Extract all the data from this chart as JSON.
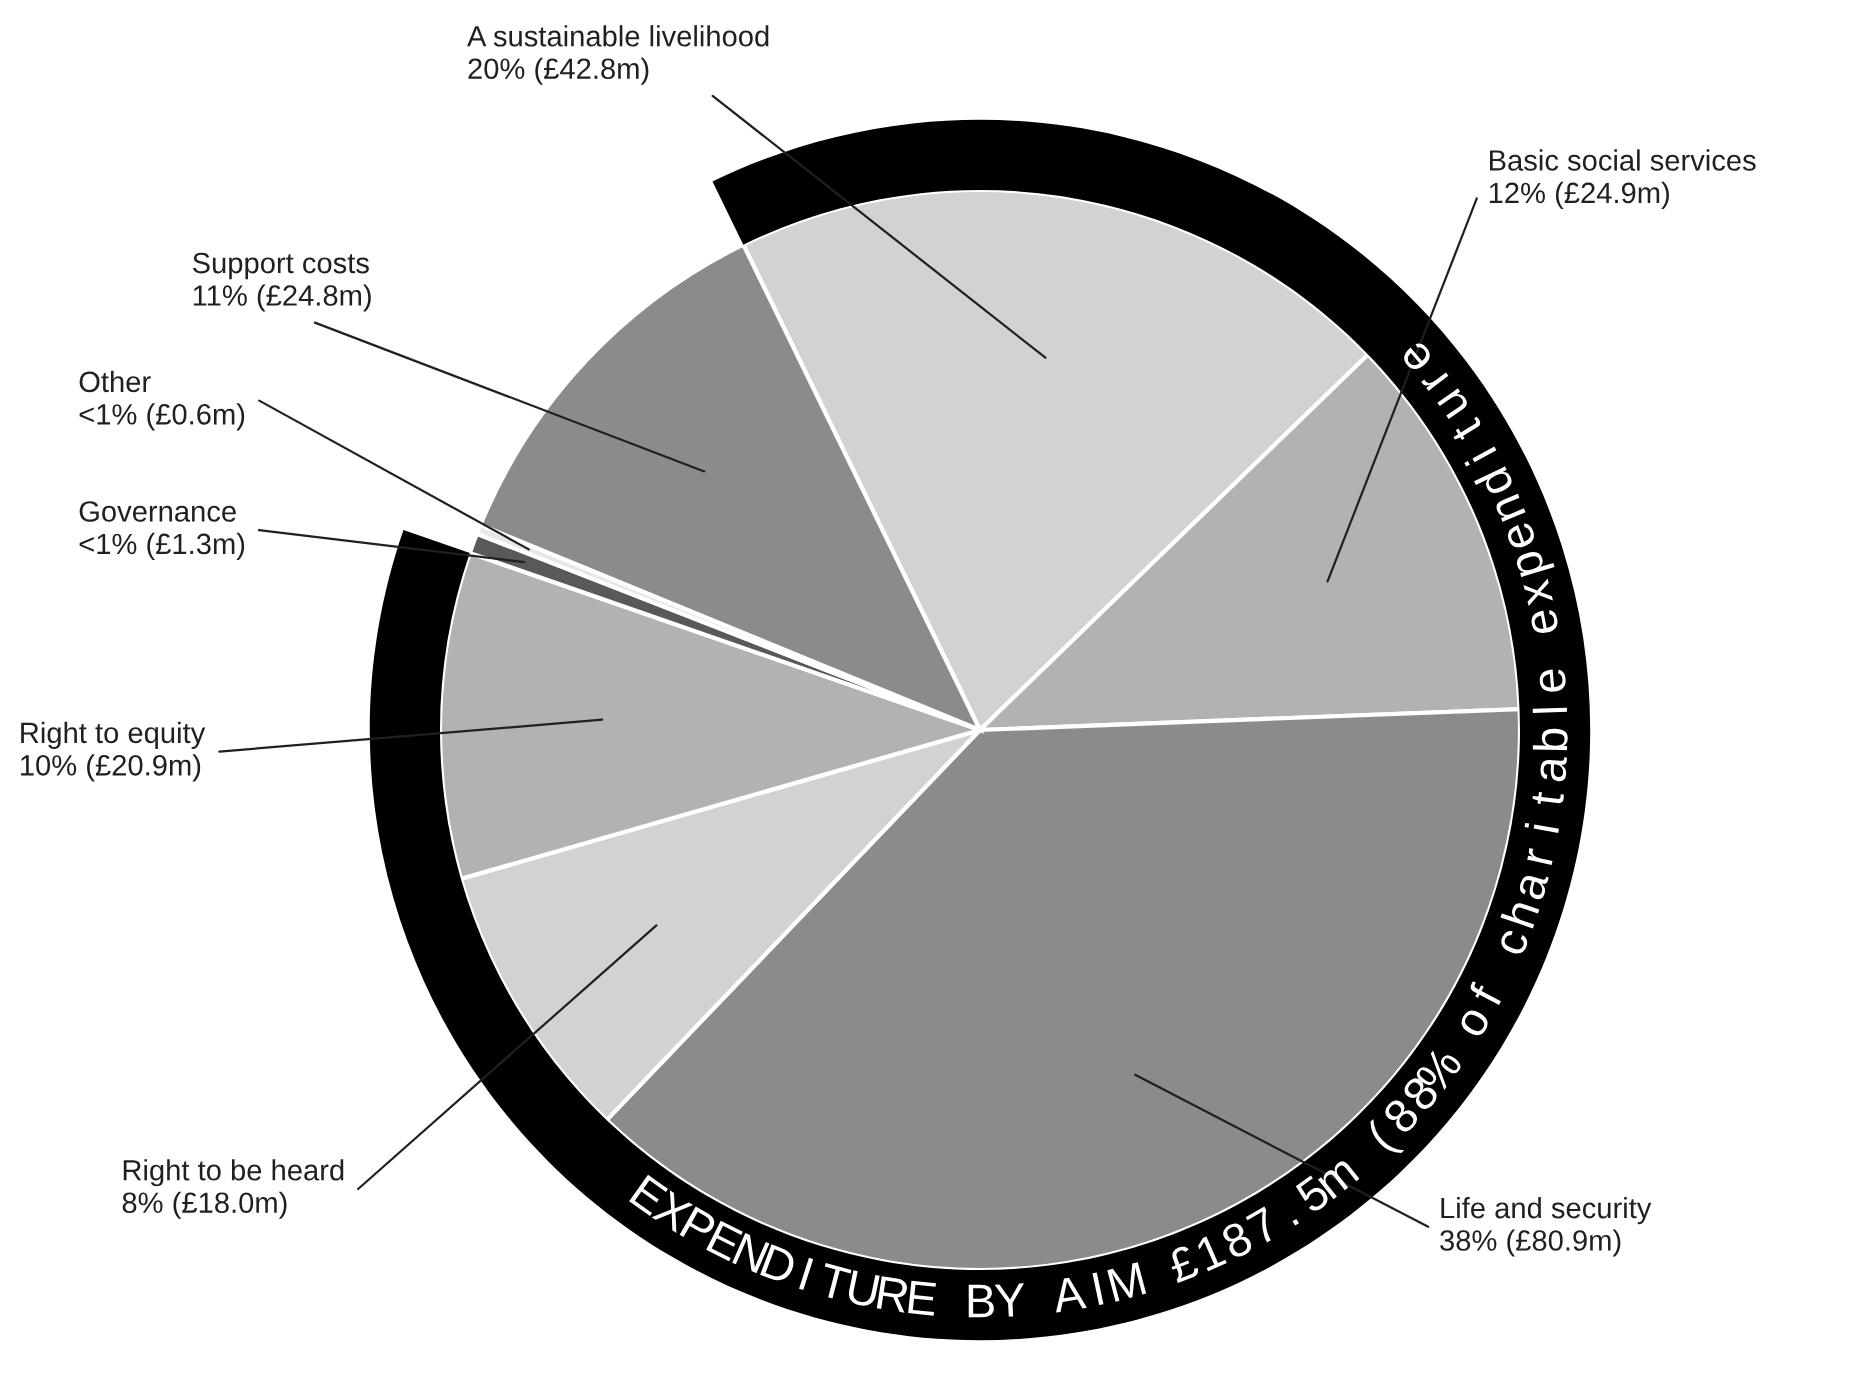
{
  "chart_data": {
    "type": "pie",
    "categories": [
      "A sustainable livelihood\n20% (£42.8m)",
      "Basic social services\n12% (£24.9m)",
      "Life and security\n38% (£80.9m)",
      "Right to be heard\n8% (£18.0m)",
      "Right to equity\n10% (£20.9m)",
      "Governance\n<1% (£1.3m)",
      "Other\n<1% (£0.6m)",
      "Support costs\n11% (£24.8m)"
    ],
    "values": [
      42.8,
      24.9,
      80.9,
      18.0,
      20.9,
      1.3,
      0.6,
      24.8
    ],
    "colors": [
      "#d1d2d4",
      "#b1b2b4",
      "#8a8b8d",
      "#d1d2d4",
      "#b1b2b4",
      "#58595b",
      "#e6e7e8",
      "#8a8b8d"
    ],
    "annotations": [
      "EXPENDITURE BY AIM £187.5m (88% of charitable expenditure"
    ],
    "legend": false
  }
}
